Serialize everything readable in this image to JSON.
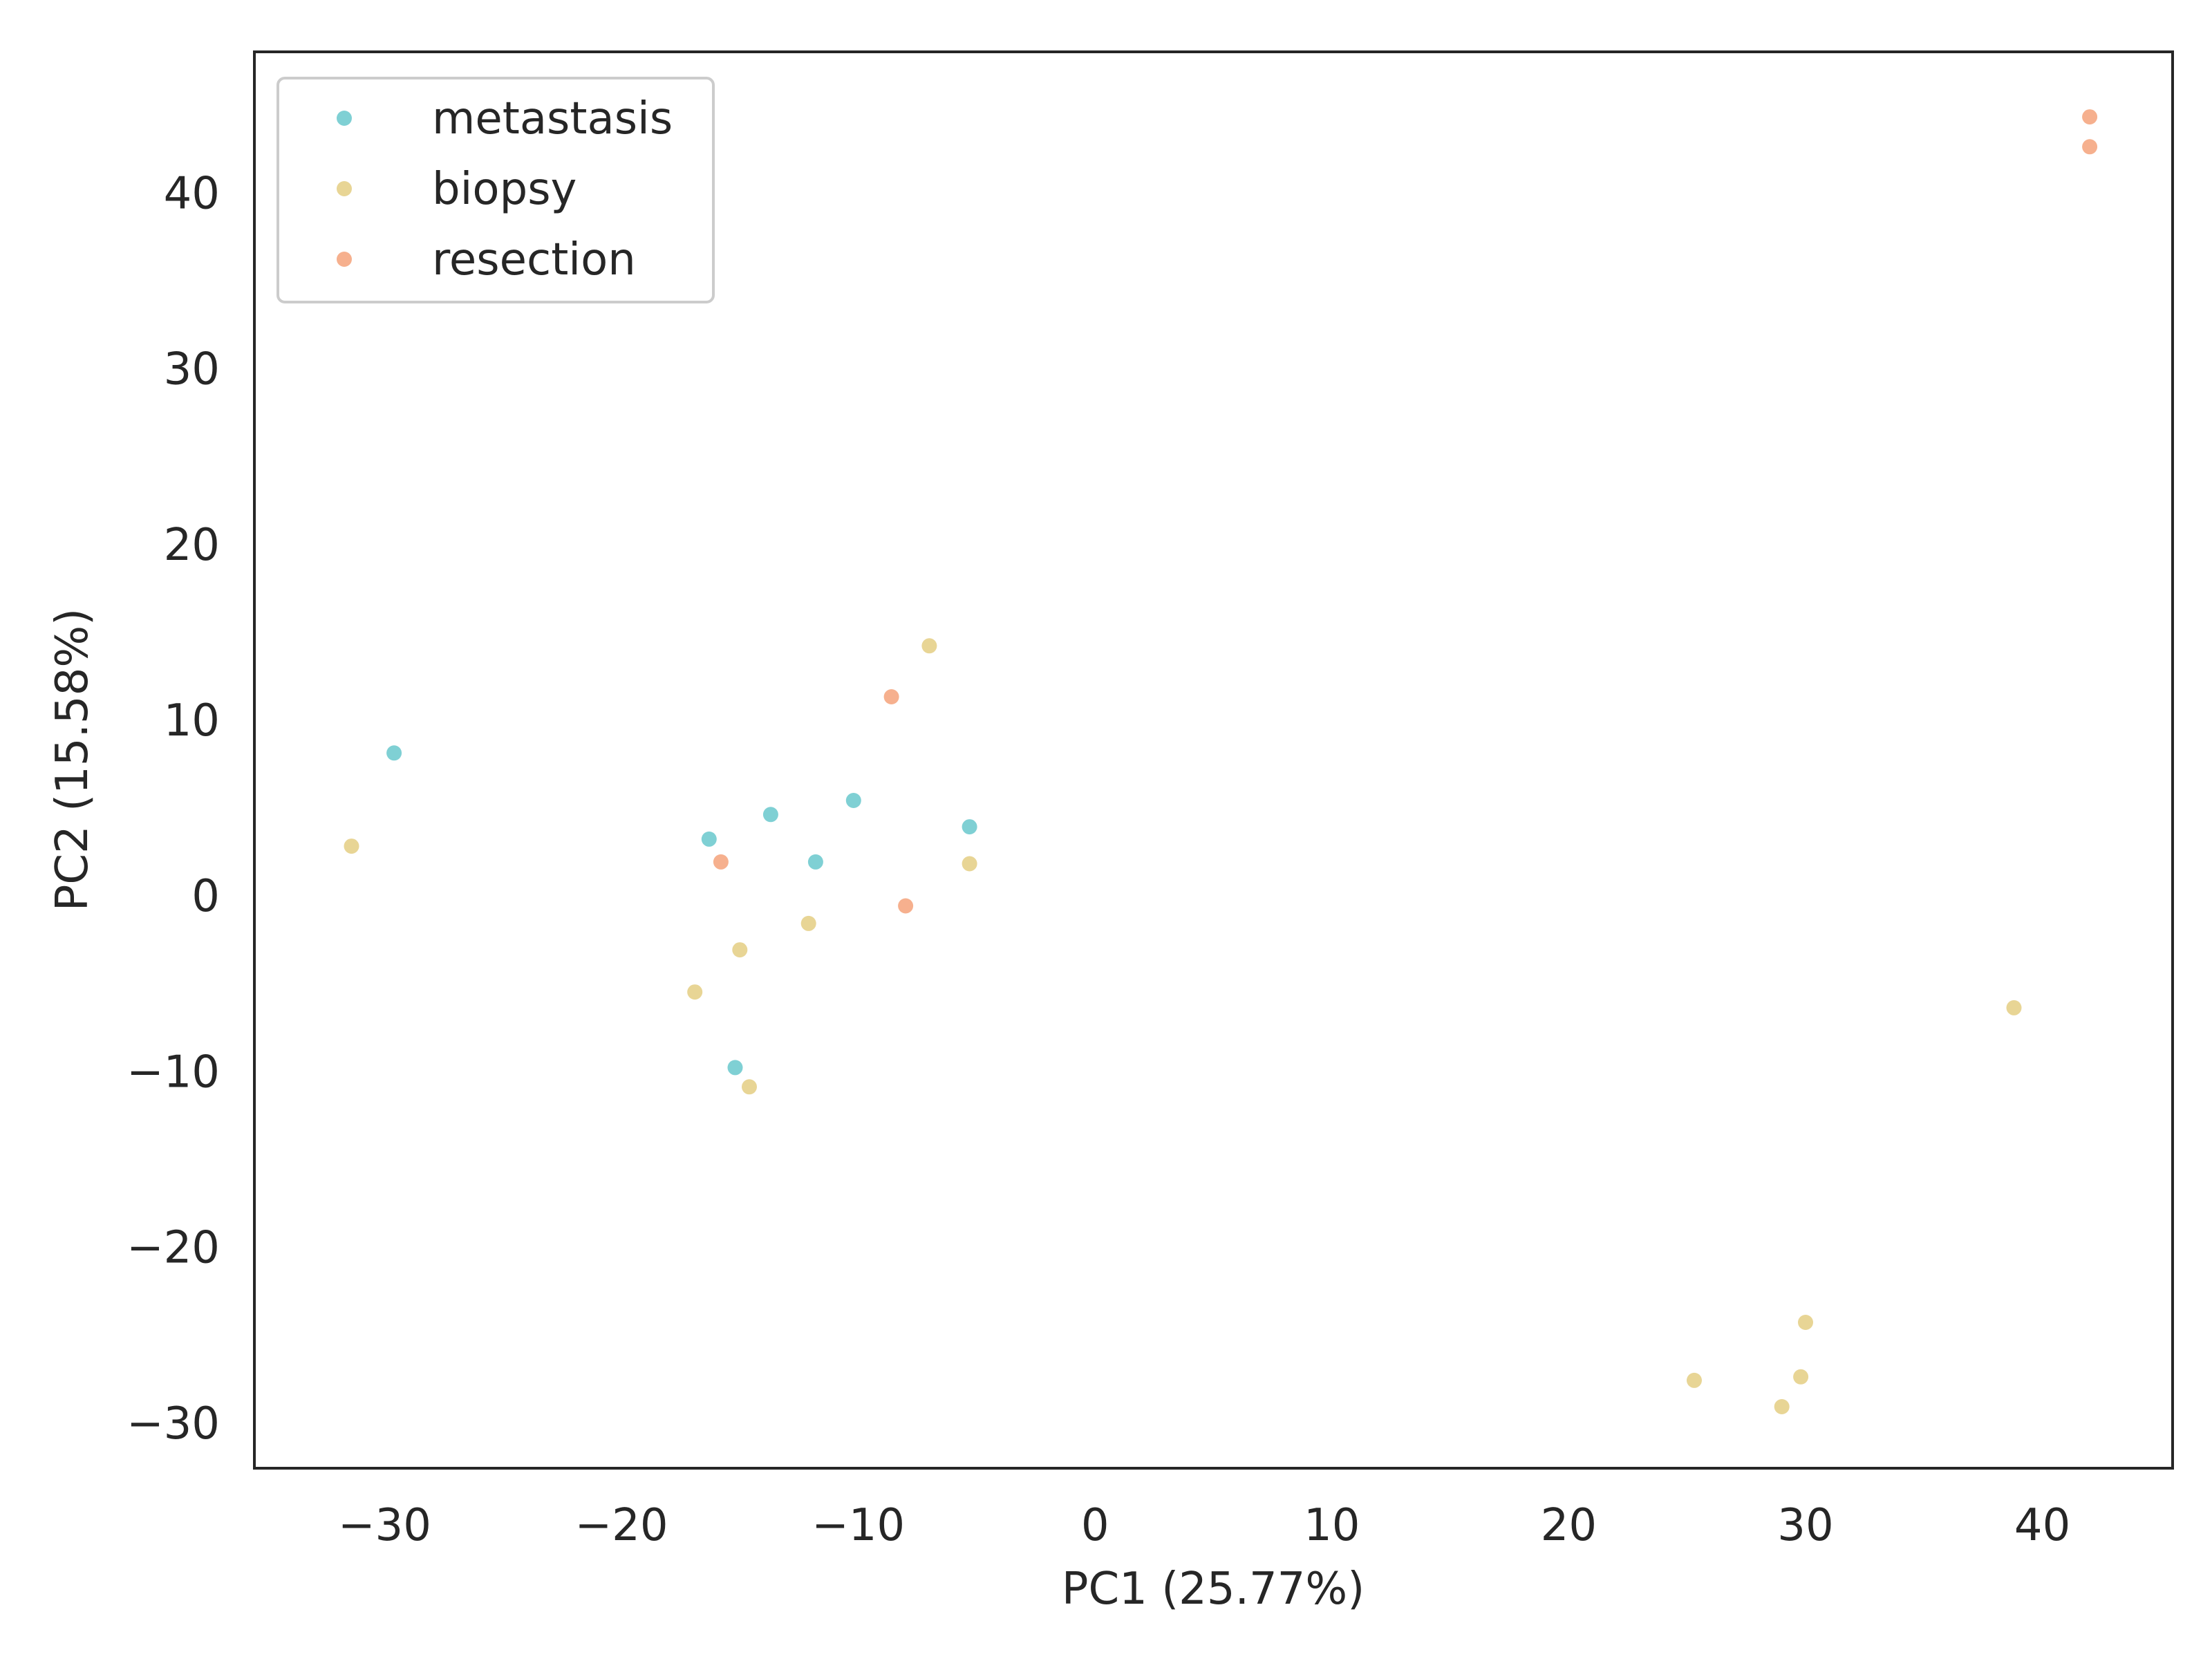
{
  "chart_data": {
    "type": "scatter",
    "title": "",
    "xlabel": "PC1 (25.77%)",
    "ylabel": "PC2 (15.58%)",
    "xlim": [
      -35.5,
      45.5
    ],
    "ylim": [
      -32.6,
      48.0
    ],
    "xticks": [
      -30,
      -20,
      -10,
      0,
      10,
      20,
      30,
      40
    ],
    "yticks": [
      -30,
      -20,
      -10,
      0,
      10,
      20,
      30,
      40
    ],
    "xtick_labels": [
      "−30",
      "−20",
      "−10",
      "0",
      "10",
      "20",
      "30",
      "40"
    ],
    "ytick_labels": [
      "−30",
      "−20",
      "−10",
      "0",
      "10",
      "20",
      "30",
      "40"
    ],
    "grid": false,
    "legend_position": "top-left",
    "series": [
      {
        "name": "metastasis",
        "color": "#7fd0d4",
        "points": [
          {
            "x": -29.6,
            "y": 8.1
          },
          {
            "x": -16.3,
            "y": 3.2
          },
          {
            "x": -13.7,
            "y": 4.6
          },
          {
            "x": -11.8,
            "y": 1.9
          },
          {
            "x": -10.2,
            "y": 5.4
          },
          {
            "x": -5.3,
            "y": 3.9
          },
          {
            "x": -15.2,
            "y": -9.8
          }
        ]
      },
      {
        "name": "biopsy",
        "color": "#e8d595",
        "points": [
          {
            "x": -31.4,
            "y": 2.8
          },
          {
            "x": -7.0,
            "y": 14.2
          },
          {
            "x": -5.3,
            "y": 1.8
          },
          {
            "x": -12.1,
            "y": -1.6
          },
          {
            "x": -15.0,
            "y": -3.1
          },
          {
            "x": -16.9,
            "y": -5.5
          },
          {
            "x": -14.6,
            "y": -10.9
          },
          {
            "x": 38.8,
            "y": -6.4
          },
          {
            "x": 25.3,
            "y": -27.6
          },
          {
            "x": 30.0,
            "y": -24.3
          },
          {
            "x": 29.8,
            "y": -27.4
          },
          {
            "x": 29.0,
            "y": -29.1
          }
        ]
      },
      {
        "name": "resection",
        "color": "#f6b08e",
        "points": [
          {
            "x": -15.8,
            "y": 1.9
          },
          {
            "x": -8.6,
            "y": 11.3
          },
          {
            "x": -8.0,
            "y": -0.6
          },
          {
            "x": 42.0,
            "y": 44.3
          },
          {
            "x": 42.0,
            "y": 42.6
          }
        ]
      }
    ]
  }
}
